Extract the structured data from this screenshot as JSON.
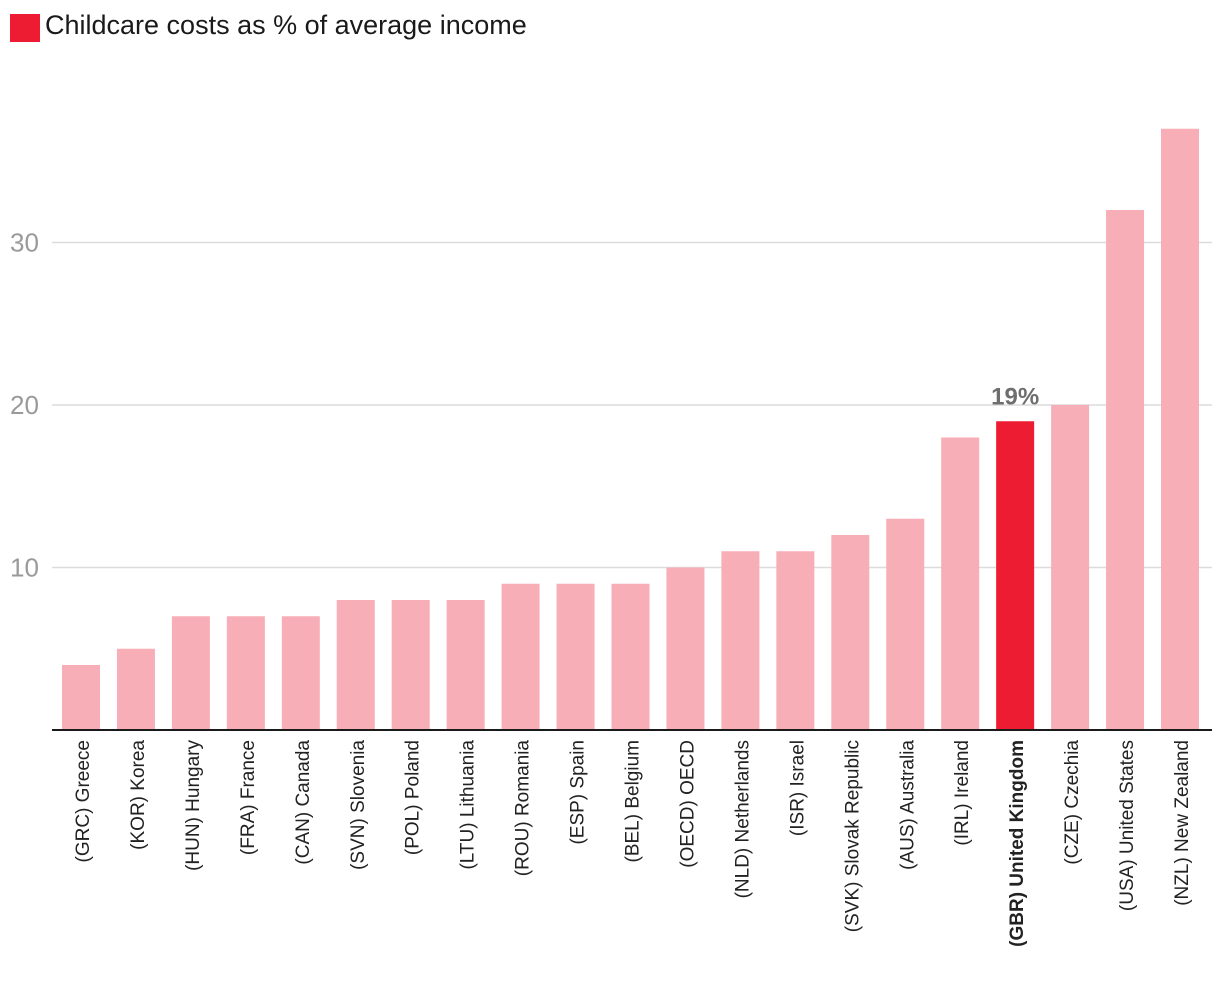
{
  "chart_data": {
    "type": "bar",
    "title": "Childcare costs as % of average income",
    "xlabel": "",
    "ylabel": "",
    "ylim": [
      0,
      37
    ],
    "yticks": [
      10,
      20,
      30
    ],
    "grid": true,
    "legend": "top-left",
    "categories": [
      "(GRC) Greece",
      "(KOR) Korea",
      "(HUN) Hungary",
      "(FRA) France",
      "(CAN) Canada",
      "(SVN) Slovenia",
      "(POL) Poland",
      "(LTU) Lithuania",
      "(ROU) Romania",
      "(ESP) Spain",
      "(BEL) Belgium",
      "(OECD) OECD",
      "(NLD) Netherlands",
      "(ISR) Israel",
      "(SVK) Slovak Republic",
      "(AUS) Australia",
      "(IRL) Ireland",
      "(GBR) United Kingdom",
      "(CZE) Czechia",
      "(USA) United States",
      "(NZL) New Zealand"
    ],
    "values": [
      4,
      5,
      7,
      7,
      7,
      8,
      8,
      8,
      9,
      9,
      9,
      10,
      11,
      11,
      12,
      13,
      18,
      19,
      20,
      32,
      37
    ],
    "highlight": {
      "category": "(GBR) United Kingdom",
      "label": "19%"
    },
    "colors": {
      "bar": "#f7aeb6",
      "highlight": "#ed1c33",
      "grid": "#dcdcdc",
      "axis": "#1a1a1a",
      "tick_label": "#9a9a9a",
      "category_label": "#222222",
      "annotation": "#6e6e6e"
    }
  }
}
